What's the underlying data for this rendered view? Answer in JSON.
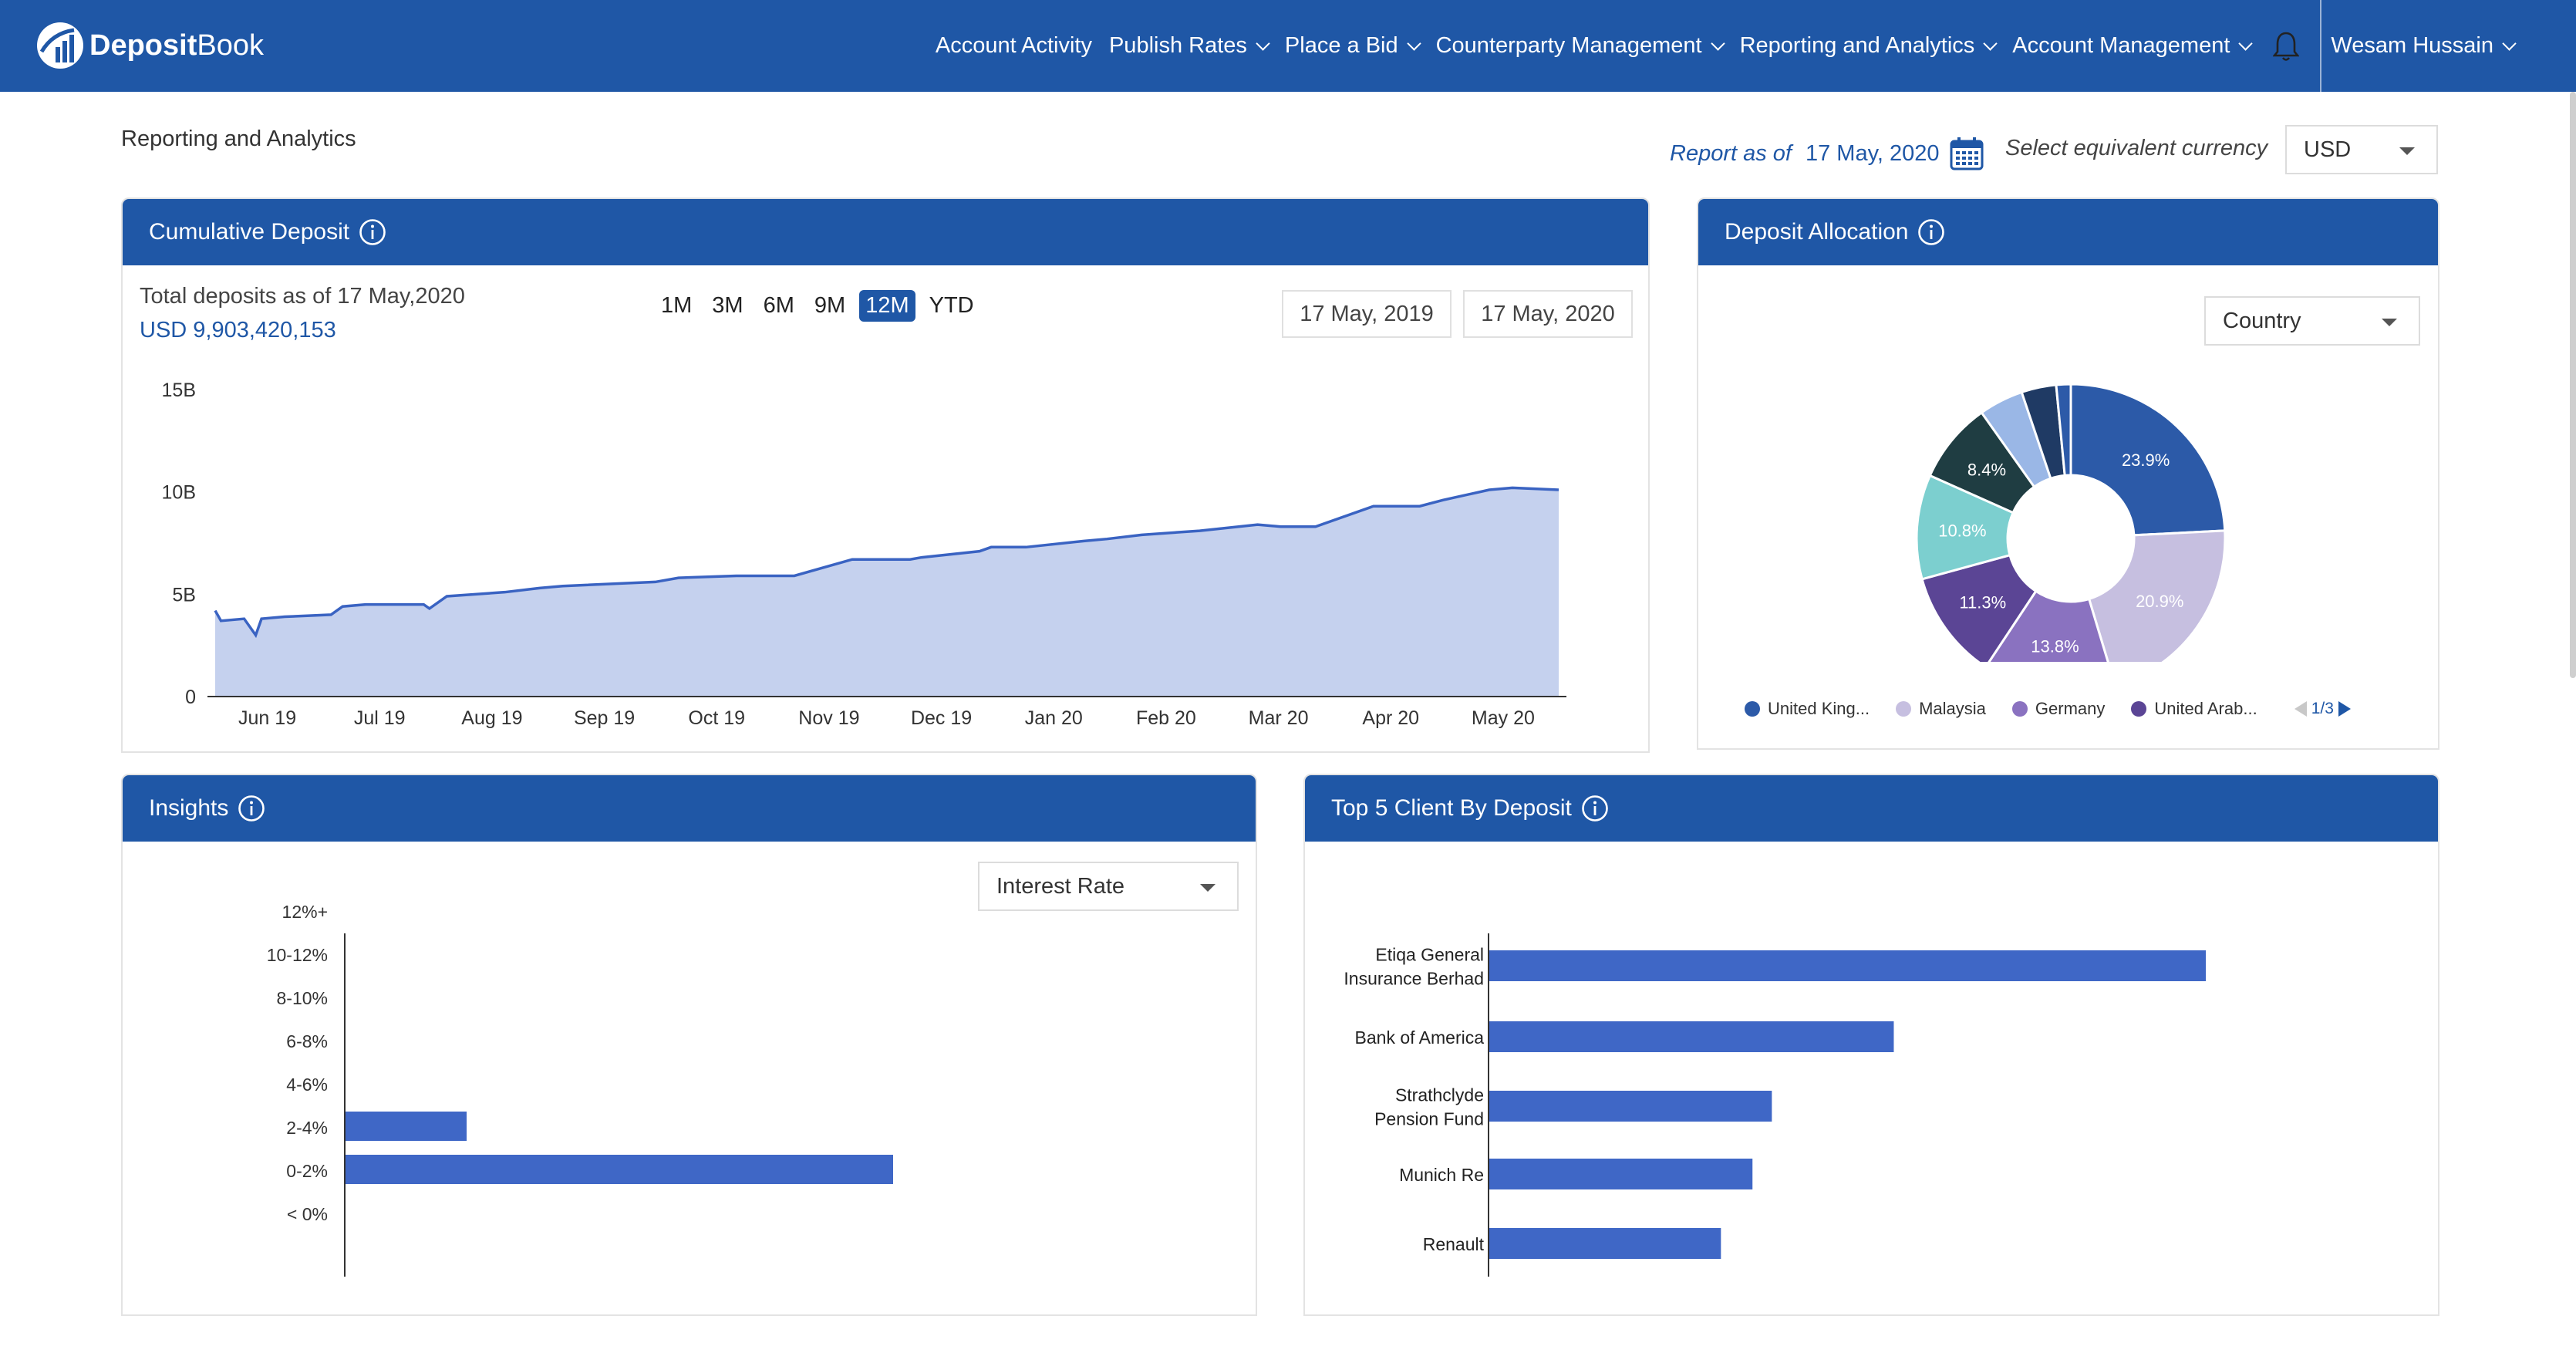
{
  "app": {
    "brand_bold": "Deposit",
    "brand_rest": "Book"
  },
  "nav": {
    "items": [
      {
        "label": "Account Activity",
        "has_menu": false
      },
      {
        "label": "Publish Rates",
        "has_menu": true
      },
      {
        "label": "Place a Bid",
        "has_menu": true
      },
      {
        "label": "Counterparty Management",
        "has_menu": true
      },
      {
        "label": "Reporting and Analytics",
        "has_menu": true
      },
      {
        "label": "Account Management",
        "has_menu": true
      }
    ],
    "user": "Wesam Hussain",
    "bell_icon": "bell-icon"
  },
  "page": {
    "title": "Reporting and Analytics",
    "report_label": "Report as of",
    "report_date": "17 May, 2020",
    "currency_label": "Select equivalent currency",
    "currency_value": "USD"
  },
  "cumulative": {
    "title": "Cumulative Deposit",
    "total_label": "Total deposits as of 17 May,2020",
    "total_value": "USD 9,903,420,153",
    "ranges": [
      "1M",
      "3M",
      "6M",
      "9M",
      "12M",
      "YTD"
    ],
    "active_range": "12M",
    "date_from": "17 May, 2019",
    "date_to": "17 May, 2020"
  },
  "allocation": {
    "title": "Deposit Allocation",
    "group_by": "Country",
    "legend": [
      {
        "label": "United King...",
        "color": "#2c5aa8"
      },
      {
        "label": "Malaysia",
        "color": "#c6bfe0"
      },
      {
        "label": "Germany",
        "color": "#8a72c0"
      },
      {
        "label": "United Arab...",
        "color": "#5b4595"
      }
    ],
    "pager": "1/3"
  },
  "insights": {
    "title": "Insights",
    "metric": "Interest Rate"
  },
  "top_clients": {
    "title": "Top 5 Client By Deposit"
  },
  "chart_data": [
    {
      "type": "area",
      "title": "Cumulative Deposit",
      "x_ticks": [
        "Jun 19",
        "Jul 19",
        "Aug 19",
        "Sep 19",
        "Oct 19",
        "Nov 19",
        "Dec 19",
        "Jan 20",
        "Feb 20",
        "Mar 20",
        "Apr 20",
        "May 20"
      ],
      "y_ticks": [
        "0",
        "5B",
        "10B",
        "15B"
      ],
      "ylim": [
        0,
        15
      ],
      "y_unit": "B",
      "color": "#3a63c2",
      "fill": "#c5d1ee",
      "x": [
        0,
        0.05,
        0.25,
        0.35,
        0.4,
        0.6,
        1.0,
        1.1,
        1.3,
        1.5,
        1.8,
        1.85,
        2.0,
        2.5,
        2.8,
        3.0,
        3.8,
        4.0,
        4.5,
        5.0,
        5.5,
        6.0,
        6.1,
        6.6,
        6.7,
        7.0,
        7.5,
        7.7,
        8.0,
        8.5,
        9.0,
        9.2,
        9.5,
        10.0,
        10.1,
        10.4,
        10.6,
        11.0,
        11.2,
        11.6
      ],
      "y": [
        4.2,
        3.7,
        3.8,
        3.0,
        3.8,
        3.9,
        4.0,
        4.4,
        4.5,
        4.5,
        4.5,
        4.3,
        4.9,
        5.1,
        5.3,
        5.4,
        5.6,
        5.8,
        5.9,
        5.9,
        6.7,
        6.7,
        6.8,
        7.1,
        7.3,
        7.3,
        7.6,
        7.7,
        7.9,
        8.1,
        8.4,
        8.3,
        8.3,
        9.3,
        9.3,
        9.3,
        9.6,
        10.1,
        10.2,
        10.1
      ]
    },
    {
      "type": "pie",
      "title": "Deposit Allocation",
      "slices": [
        {
          "label": "United Kingdom",
          "value": 23.9,
          "color": "#2c5aa8",
          "display": "23.9%"
        },
        {
          "label": "Malaysia",
          "value": 20.9,
          "color": "#c6bfe0",
          "display": "20.9%"
        },
        {
          "label": "Germany",
          "value": 13.8,
          "color": "#8a72c0",
          "display": "13.8%"
        },
        {
          "label": "United Arab Emirates",
          "value": 11.3,
          "color": "#5b4595",
          "display": "11.3%"
        },
        {
          "label": "",
          "value": 10.8,
          "color": "#7ccfcf",
          "display": "10.8%"
        },
        {
          "label": "",
          "value": 8.4,
          "color": "#1f3d42",
          "display": "8.4%"
        },
        {
          "label": "",
          "value": 4.6,
          "color": "#9ab7e6",
          "display": ""
        },
        {
          "label": "",
          "value": 3.6,
          "color": "#1f3a64",
          "display": ""
        },
        {
          "label": "",
          "value": 1.5,
          "color": "#2d5aa8",
          "display": ""
        }
      ]
    },
    {
      "type": "bar",
      "orientation": "horizontal",
      "title": "Insights",
      "categories": [
        "12%+",
        "10-12%",
        "8-10%",
        "6-8%",
        "4-6%",
        "2-4%",
        "0-2%",
        "< 0%"
      ],
      "values": [
        0,
        0,
        0,
        0,
        0,
        1,
        4.5,
        0
      ],
      "color": "#3f67c6"
    },
    {
      "type": "bar",
      "orientation": "horizontal",
      "title": "Top 5 Client By Deposit",
      "categories": [
        [
          "Etiqa General",
          "Insurance Berhad"
        ],
        [
          "Bank of America"
        ],
        [
          "Strathclyde",
          "Pension Fund"
        ],
        [
          "Munich Re"
        ],
        [
          "Renault"
        ]
      ],
      "values": [
        100,
        56.5,
        39.5,
        36.8,
        32.4
      ],
      "color": "#3f67c6"
    }
  ]
}
